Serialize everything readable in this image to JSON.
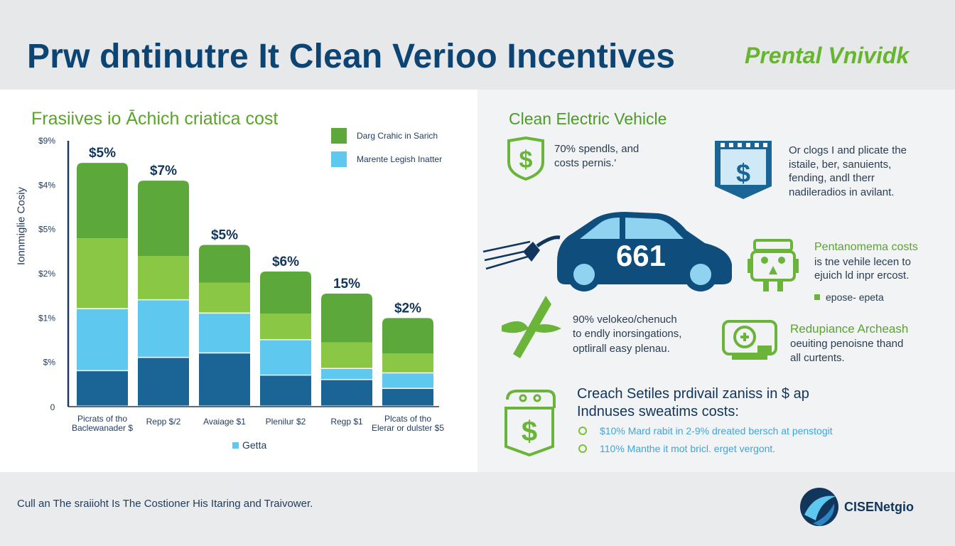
{
  "header": {
    "title": "Prw dntinutre It Clean Verioo Incentives",
    "brand_tag": "Prental Vnividk"
  },
  "left": {
    "chart_title": "Frasiives io Āchich criatica cost"
  },
  "chart_data": {
    "type": "bar",
    "stacked": true,
    "title": "Frasiives io Āchich criatica cost",
    "ylabel": "Ionnmiglie Cosiy",
    "xlabel": "",
    "yticks": [
      "$%",
      "$1%",
      "$2%",
      "$5%",
      "$4%",
      "$9%"
    ],
    "y_zero_label": "0",
    "ylim": [
      0,
      6
    ],
    "categories": [
      "Picrats of tho Baclewanader $",
      "Repp $/2",
      "Avaiage $1",
      "Plenilur $2",
      "Regp $1",
      "Plcats of tho Elerar or dulster $5"
    ],
    "top_labels": [
      "$5%",
      "$7%",
      "$5%",
      "$6%",
      "15%",
      "$2%"
    ],
    "segments": [
      {
        "color": "#1b6496",
        "values": [
          0.8,
          1.1,
          1.2,
          0.7,
          0.6,
          0.4
        ]
      },
      {
        "color": "#5ec8ee",
        "values": [
          1.4,
          1.3,
          0.9,
          0.8,
          0.25,
          0.35
        ]
      },
      {
        "color": "#8ac744",
        "values": [
          1.6,
          1.0,
          0.7,
          0.6,
          0.6,
          0.45
        ]
      },
      {
        "color": "#5da83a",
        "values": [
          1.7,
          1.7,
          0.85,
          0.95,
          1.1,
          0.8
        ]
      }
    ],
    "legend": [
      {
        "label": "Darg Crahic in Sarich",
        "color": "#5da83a"
      },
      {
        "label": "Marente Legish Inatter",
        "color": "#5ec8ee"
      }
    ],
    "legend_position": "top-right",
    "bottom_legend": {
      "label": "Getta",
      "color": "#5ec8ee"
    },
    "grid": false
  },
  "right": {
    "section_title": "Clean Electric Vehicle",
    "car_number": "661",
    "blocks": [
      {
        "lines": [
          "70% spendls, and",
          "costs pernis.'"
        ]
      },
      {
        "lines": [
          "Or clogs I and plicate the",
          "istaile, ber, sanuients,",
          "fending, andl therr",
          "nadileradios in avilant."
        ]
      },
      {
        "head": "Pentanomema costs",
        "lines": [
          "is tne vehile lecen to",
          "ejuich ld inpr ercost."
        ],
        "tag": "epose-  epeta"
      },
      {
        "lines": [
          "90% velokeo/chenuch",
          "to endly inorsingations,",
          "optlirall easy plenau."
        ]
      },
      {
        "head": "Redupiance  Archeash",
        "lines": [
          "oeuiting penoisne thand",
          "all curtents."
        ]
      }
    ],
    "savings": {
      "head_lines": [
        "Creach Setiles prdivail zaniss in $ ap",
        "Indnuses sweatims costs:"
      ],
      "items": [
        "$10% Mard rabit in 2-9% dreated bersch at penstogit",
        "110% Manthe it mot bricl. erget vergont."
      ]
    }
  },
  "footer": {
    "text": "Cull an The sraiioht Is The Costioner His Itaring and Traivower.",
    "logo_text": "CISENetgio"
  },
  "colors": {
    "navy": "#0c4474",
    "green": "#5da83a",
    "light_blue": "#5ec8ee"
  }
}
